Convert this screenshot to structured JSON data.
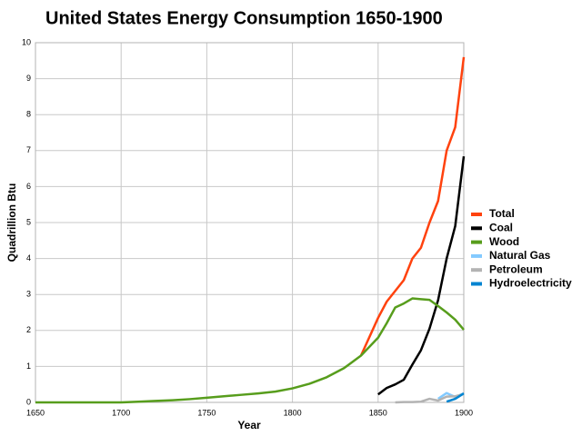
{
  "chart_data": {
    "type": "line",
    "title": "United States Energy Consumption 1650-1900",
    "x_label": "Year",
    "y_label": "Quadrillion Btu",
    "x": [
      1650,
      1660,
      1670,
      1680,
      1690,
      1700,
      1710,
      1720,
      1730,
      1740,
      1750,
      1760,
      1770,
      1780,
      1790,
      1800,
      1810,
      1820,
      1830,
      1840,
      1850,
      1855,
      1860,
      1865,
      1870,
      1875,
      1880,
      1885,
      1890,
      1895,
      1900
    ],
    "series": [
      {
        "name": "Total",
        "color": "#ff420e",
        "values": [
          null,
          null,
          null,
          null,
          null,
          null,
          null,
          null,
          null,
          null,
          null,
          null,
          null,
          null,
          null,
          null,
          null,
          null,
          null,
          1.3,
          2.35,
          2.8,
          3.1,
          3.4,
          4.0,
          4.3,
          5.0,
          5.6,
          7.0,
          7.65,
          9.6
        ]
      },
      {
        "name": "Coal",
        "color": "#000000",
        "values": [
          null,
          null,
          null,
          null,
          null,
          null,
          null,
          null,
          null,
          null,
          null,
          null,
          null,
          null,
          null,
          null,
          null,
          null,
          null,
          null,
          0.22,
          0.4,
          0.5,
          0.63,
          1.05,
          1.45,
          2.05,
          2.84,
          4.0,
          4.9,
          6.84
        ]
      },
      {
        "name": "Wood",
        "color": "#579d1c",
        "values": [
          0,
          0,
          0,
          0,
          0,
          0,
          0.02,
          0.04,
          0.06,
          0.09,
          0.13,
          0.17,
          0.21,
          0.25,
          0.3,
          0.39,
          0.52,
          0.7,
          0.95,
          1.3,
          1.8,
          2.2,
          2.64,
          2.75,
          2.89,
          2.87,
          2.85,
          2.68,
          2.5,
          2.3,
          2.02
        ]
      },
      {
        "name": "Natural Gas",
        "color": "#83caff",
        "values": [
          null,
          null,
          null,
          null,
          null,
          null,
          null,
          null,
          null,
          null,
          null,
          null,
          null,
          null,
          null,
          null,
          null,
          null,
          null,
          null,
          null,
          null,
          null,
          null,
          null,
          null,
          null,
          0.1,
          0.26,
          0.15,
          0.25
        ]
      },
      {
        "name": "Petroleum",
        "color": "#b3b3b3",
        "values": [
          null,
          null,
          null,
          null,
          null,
          null,
          null,
          null,
          null,
          null,
          null,
          null,
          null,
          null,
          null,
          null,
          null,
          null,
          null,
          null,
          null,
          null,
          0,
          0.01,
          0.01,
          0.02,
          0.1,
          0.05,
          0.16,
          0.17,
          0.23
        ]
      },
      {
        "name": "Hydroelectricity",
        "color": "#0084d1",
        "values": [
          null,
          null,
          null,
          null,
          null,
          null,
          null,
          null,
          null,
          null,
          null,
          null,
          null,
          null,
          null,
          null,
          null,
          null,
          null,
          null,
          null,
          null,
          null,
          null,
          null,
          null,
          null,
          null,
          0.02,
          0.1,
          0.25
        ]
      }
    ],
    "xlim": [
      1650,
      1900
    ],
    "xticks": [
      1650,
      1700,
      1750,
      1800,
      1850,
      1900
    ],
    "ylim": [
      0,
      10
    ],
    "yticks": [
      0,
      1,
      2,
      3,
      4,
      5,
      6,
      7,
      8,
      9,
      10
    ],
    "grid": true,
    "legend": "right"
  }
}
